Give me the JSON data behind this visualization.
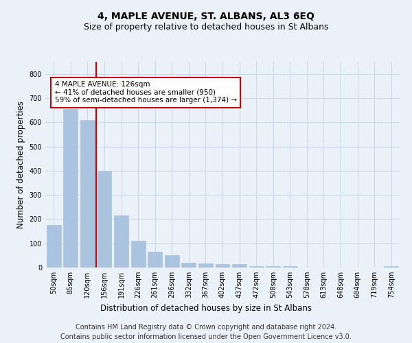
{
  "title": "4, MAPLE AVENUE, ST. ALBANS, AL3 6EQ",
  "subtitle": "Size of property relative to detached houses in St Albans",
  "xlabel": "Distribution of detached houses by size in St Albans",
  "ylabel": "Number of detached properties",
  "bar_labels": [
    "50sqm",
    "85sqm",
    "120sqm",
    "156sqm",
    "191sqm",
    "226sqm",
    "261sqm",
    "296sqm",
    "332sqm",
    "367sqm",
    "402sqm",
    "437sqm",
    "472sqm",
    "508sqm",
    "543sqm",
    "578sqm",
    "613sqm",
    "648sqm",
    "684sqm",
    "719sqm",
    "754sqm"
  ],
  "bar_values": [
    175,
    655,
    610,
    400,
    215,
    110,
    65,
    50,
    20,
    17,
    15,
    13,
    7,
    5,
    5,
    0,
    0,
    0,
    0,
    0,
    5
  ],
  "bar_color": "#aac4e0",
  "bar_edgecolor": "#aac4e0",
  "vline_x_idx": 2,
  "vline_color": "#cc0000",
  "annotation_text": "4 MAPLE AVENUE: 126sqm\n← 41% of detached houses are smaller (950)\n59% of semi-detached houses are larger (1,374) →",
  "annotation_box_color": "#ffffff",
  "annotation_box_edgecolor": "#cc0000",
  "ylim": [
    0,
    850
  ],
  "yticks": [
    0,
    100,
    200,
    300,
    400,
    500,
    600,
    700,
    800
  ],
  "grid_color": "#ccd9e8",
  "bg_color": "#eaf1f8",
  "plot_bg_color": "#eaf1f8",
  "footer_line1": "Contains HM Land Registry data © Crown copyright and database right 2024.",
  "footer_line2": "Contains public sector information licensed under the Open Government Licence v3.0.",
  "title_fontsize": 10,
  "subtitle_fontsize": 9,
  "xlabel_fontsize": 8.5,
  "ylabel_fontsize": 8.5,
  "tick_fontsize": 7,
  "footer_fontsize": 7,
  "annotation_fontsize": 7.5
}
